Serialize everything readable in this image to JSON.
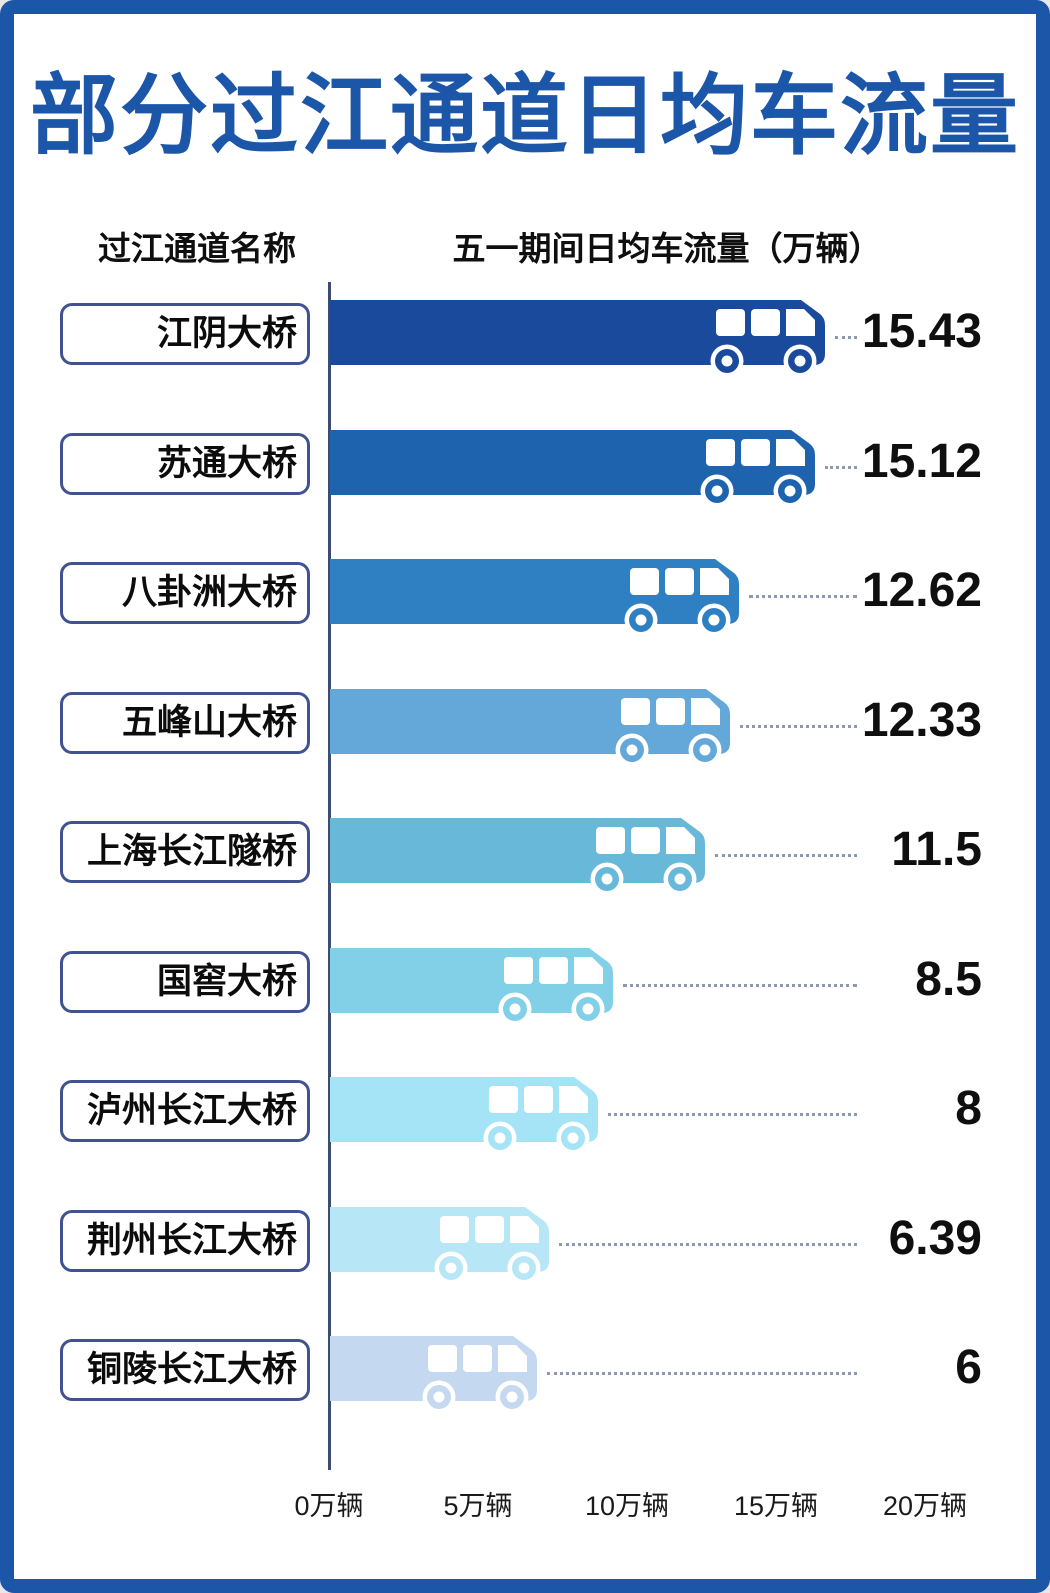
{
  "title": "部分过江通道日均车流量",
  "columns": {
    "left": "过江通道名称",
    "right": "五一期间日均车流量（万辆）"
  },
  "chart_data": {
    "type": "bar",
    "orientation": "horizontal",
    "title": "部分过江通道日均车流量",
    "xlabel": "五一期间日均车流量（万辆）",
    "unit": "万辆",
    "categories": [
      "江阴大桥",
      "苏通大桥",
      "八卦洲大桥",
      "五峰山大桥",
      "上海长江隧桥",
      "国窖大桥",
      "泸州长江大桥",
      "荆州长江大桥",
      "铜陵长江大桥"
    ],
    "values": [
      15.43,
      15.12,
      12.62,
      12.33,
      11.5,
      8.5,
      8,
      6.39,
      6
    ],
    "value_labels": [
      "15.43",
      "15.12",
      "12.62",
      "12.33",
      "11.5",
      "8.5",
      "8",
      "6.39",
      "6"
    ],
    "x_ticks": [
      "0万辆",
      "5万辆",
      "10万辆",
      "15万辆",
      "20万辆"
    ],
    "x_range": [
      0,
      20
    ],
    "grid": false,
    "legend": false,
    "bar_colors": [
      "#1a4a9b",
      "#1d63ae",
      "#2f80c3",
      "#64a7d9",
      "#68b8d9",
      "#82d0e8",
      "#a5e3f6",
      "#b7e7f7",
      "#c4d9ef"
    ]
  },
  "colors": {
    "frame": "#1b56a9",
    "title_text": "#1b56a9",
    "label_box_border": "#40528f",
    "axis_line": "#3c4c6e",
    "leader_dotted": "#8f99ae",
    "text": "#0f0f0f"
  }
}
